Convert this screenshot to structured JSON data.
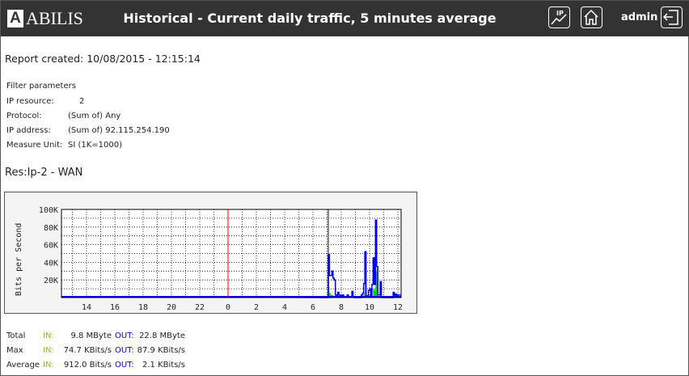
{
  "header": {
    "logo_letter": "A",
    "logo_text": "ABILIS",
    "title": "Historical - Current daily traffic, 5 minutes average",
    "ip_icon_label": "IP",
    "user": "admin"
  },
  "report": {
    "created": "Report created: 10/08/2015 - 12:15:14"
  },
  "filter": {
    "heading": "Filter parameters",
    "rows": [
      {
        "label": "IP resource:",
        "value": "2"
      },
      {
        "label": "Protocol:",
        "value": "(Sum of) Any"
      },
      {
        "label": "IP address:",
        "value": "(Sum of) 92.115.254.190"
      },
      {
        "label": "Measure Unit:",
        "value": "SI (1K=1000)"
      }
    ]
  },
  "resource_title": "Res:Ip-2 - WAN",
  "chart_data": {
    "type": "line",
    "ylabel": "Bits per Second",
    "ylim": [
      0,
      100000
    ],
    "y_ticks": [
      "20K",
      "40K",
      "60K",
      "80K",
      "100K"
    ],
    "x_ticks": [
      "14",
      "16",
      "18",
      "20",
      "22",
      "0",
      "2",
      "4",
      "6",
      "8",
      "10",
      "12"
    ],
    "grid": true,
    "midnight_marker_color": "#ff0000",
    "colors": {
      "in": "#00cc00",
      "out": "#0000ff"
    },
    "points": [
      {
        "t": "07:05",
        "in": 0,
        "out": 0
      },
      {
        "t": "07:10",
        "in": 12000,
        "out": 49000
      },
      {
        "t": "07:15",
        "in": 5000,
        "out": 25000
      },
      {
        "t": "07:20",
        "in": 3000,
        "out": 25000
      },
      {
        "t": "07:25",
        "in": 3000,
        "out": 30000
      },
      {
        "t": "07:30",
        "in": 2000,
        "out": 22000
      },
      {
        "t": "07:35",
        "in": 2000,
        "out": 20000
      },
      {
        "t": "07:40",
        "in": 1000,
        "out": 3000
      },
      {
        "t": "07:45",
        "in": 0,
        "out": 1000
      },
      {
        "t": "07:50",
        "in": 1000,
        "out": 6000
      },
      {
        "t": "07:55",
        "in": 0,
        "out": 3000
      },
      {
        "t": "08:00",
        "in": 0,
        "out": 2000
      },
      {
        "t": "08:05",
        "in": 0,
        "out": 1000
      },
      {
        "t": "08:10",
        "in": 0,
        "out": 3000
      },
      {
        "t": "08:15",
        "in": 0,
        "out": 1000
      },
      {
        "t": "08:30",
        "in": 0,
        "out": 3000
      },
      {
        "t": "08:35",
        "in": 0,
        "out": 1000
      },
      {
        "t": "08:50",
        "in": 0,
        "out": 7000
      },
      {
        "t": "08:55",
        "in": 0,
        "out": 1000
      },
      {
        "t": "09:00",
        "in": 0,
        "out": 0
      },
      {
        "t": "09:30",
        "in": 0,
        "out": 3000
      },
      {
        "t": "09:35",
        "in": 2000,
        "out": 5000
      },
      {
        "t": "09:40",
        "in": 5000,
        "out": 16000
      },
      {
        "t": "09:45",
        "in": 20000,
        "out": 52000
      },
      {
        "t": "09:50",
        "in": 1000,
        "out": 2000
      },
      {
        "t": "10:00",
        "in": 2000,
        "out": 8000
      },
      {
        "t": "10:05",
        "in": 3000,
        "out": 10000
      },
      {
        "t": "10:10",
        "in": 0,
        "out": 2000
      },
      {
        "t": "10:15",
        "in": 2000,
        "out": 15000
      },
      {
        "t": "10:20",
        "in": 10000,
        "out": 45000
      },
      {
        "t": "10:25",
        "in": 8000,
        "out": 15000
      },
      {
        "t": "10:30",
        "in": 30000,
        "out": 88000
      },
      {
        "t": "10:35",
        "in": 33000,
        "out": 35000
      },
      {
        "t": "10:40",
        "in": 1000,
        "out": 3000
      },
      {
        "t": "10:50",
        "in": 2000,
        "out": 18000
      },
      {
        "t": "10:55",
        "in": 0,
        "out": 1000
      },
      {
        "t": "11:00",
        "in": 0,
        "out": 0
      },
      {
        "t": "11:45",
        "in": 0,
        "out": 6000
      },
      {
        "t": "11:50",
        "in": 0,
        "out": 2000
      },
      {
        "t": "11:55",
        "in": 0,
        "out": 4000
      },
      {
        "t": "12:00",
        "in": 0,
        "out": 2000
      },
      {
        "t": "12:05",
        "in": 0,
        "out": 3000
      }
    ]
  },
  "summary": {
    "rows": [
      {
        "label": "Total",
        "in_label": "IN:",
        "in_value": "9.8 MByte",
        "out_label": "OUT:",
        "out_value": "22.8 MByte"
      },
      {
        "label": "Max",
        "in_label": "IN:",
        "in_value": "74.7 KBits/s",
        "out_label": "OUT:",
        "out_value": "87.9 KBits/s"
      },
      {
        "label": "Average",
        "in_label": "IN:",
        "in_value": "912.0 Bits/s",
        "out_label": "OUT:",
        "out_value": "2.1 KBits/s"
      }
    ]
  }
}
